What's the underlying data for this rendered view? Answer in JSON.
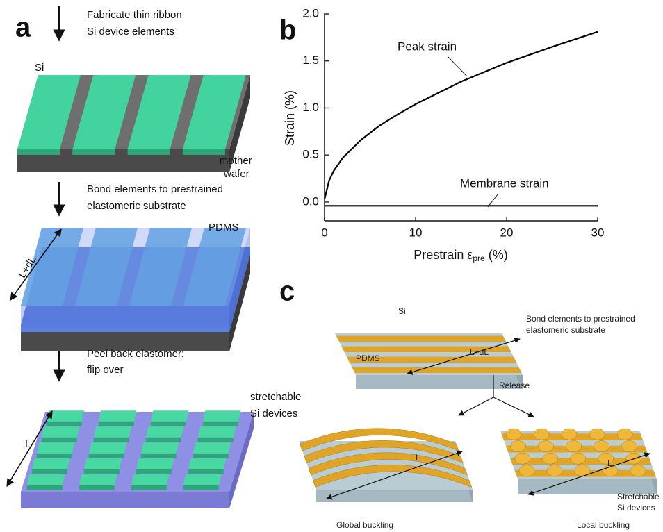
{
  "panel_labels": [
    "a",
    "b",
    "c"
  ],
  "panel_a": {
    "steps": [
      [
        "Fabricate thin ribbon",
        "Si device elements"
      ],
      [
        "Bond elements to prestrained",
        "elastomeric substrate"
      ],
      [
        "Peel back elastomer;",
        "flip over"
      ]
    ],
    "labels": {
      "si": "Si",
      "mother": "mother",
      "wafer": "wafer",
      "pdms": "PDMS",
      "length_1": "L+dL",
      "devices_1": "stretchable",
      "devices_2": "Si devices",
      "length_2": "L"
    }
  },
  "chart_data": {
    "type": "line",
    "x": [
      0,
      0.5,
      1,
      2,
      4,
      6,
      8,
      10,
      15,
      20,
      25,
      30
    ],
    "series": [
      {
        "name": "Peak strain",
        "color": "#000000",
        "values": [
          0.03,
          0.23,
          0.33,
          0.47,
          0.66,
          0.81,
          0.93,
          1.04,
          1.28,
          1.48,
          1.65,
          1.81
        ]
      },
      {
        "name": "Membrane strain",
        "color": "#000000",
        "values": [
          -0.04,
          -0.04,
          -0.04,
          -0.04,
          -0.04,
          -0.04,
          -0.04,
          -0.04,
          -0.04,
          -0.04,
          -0.04,
          -0.04
        ]
      }
    ],
    "xlabel": {
      "text": "Prestrain ε",
      "subscript": "pre",
      "unit": "(%)"
    },
    "ylabel": "Strain (%)",
    "xlim": [
      0,
      30
    ],
    "ylim": [
      -0.2,
      2.0
    ],
    "xticks": [
      0,
      10,
      20,
      30
    ],
    "yticks": [
      {
        "value": 0,
        "label": "0.0"
      },
      {
        "value": 0.5,
        "label": "0.5"
      },
      {
        "value": 1,
        "label": "1.0"
      },
      {
        "value": 1.5,
        "label": "1.5"
      },
      {
        "value": 2,
        "label": "2.0"
      }
    ]
  },
  "panel_c": {
    "top": {
      "si": "Si",
      "caption_1": "Bond elements to prestrained",
      "caption_2": "elastomeric substrate",
      "pdms": "PDMS",
      "length": "L+dL"
    },
    "release": "Release",
    "global": {
      "length": "L",
      "caption": "Global buckling"
    },
    "local": {
      "length": "L",
      "devices_1": "Stretchable",
      "devices_2": "Si devices",
      "caption": "Local buckling"
    }
  }
}
